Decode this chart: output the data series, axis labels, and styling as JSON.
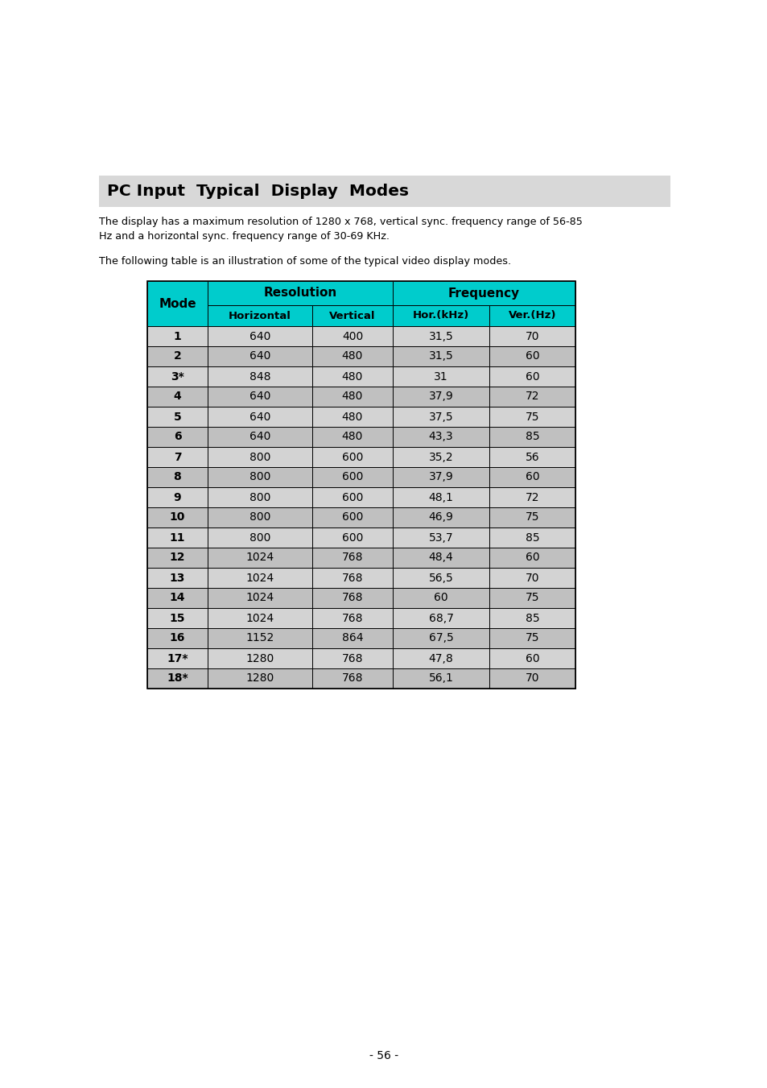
{
  "title": "PC Input  Typical  Display  Modes",
  "title_bg": "#d8d8d8",
  "description1": "The display has a maximum resolution of 1280 x 768, vertical sync. frequency range of 56-85\nHz and a horizontal sync. frequency range of 30-69 KHz.",
  "description2": "The following table is an illustration of some of the typical video display modes.",
  "page_number": "- 56 -",
  "header_bg": "#00cccc",
  "row_bg_light": "#d3d3d3",
  "row_bg_dark": "#c0c0c0",
  "rows": [
    [
      "1",
      "640",
      "400",
      "31,5",
      "70"
    ],
    [
      "2",
      "640",
      "480",
      "31,5",
      "60"
    ],
    [
      "3*",
      "848",
      "480",
      "31",
      "60"
    ],
    [
      "4",
      "640",
      "480",
      "37,9",
      "72"
    ],
    [
      "5",
      "640",
      "480",
      "37,5",
      "75"
    ],
    [
      "6",
      "640",
      "480",
      "43,3",
      "85"
    ],
    [
      "7",
      "800",
      "600",
      "35,2",
      "56"
    ],
    [
      "8",
      "800",
      "600",
      "37,9",
      "60"
    ],
    [
      "9",
      "800",
      "600",
      "48,1",
      "72"
    ],
    [
      "10",
      "800",
      "600",
      "46,9",
      "75"
    ],
    [
      "11",
      "800",
      "600",
      "53,7",
      "85"
    ],
    [
      "12",
      "1024",
      "768",
      "48,4",
      "60"
    ],
    [
      "13",
      "1024",
      "768",
      "56,5",
      "70"
    ],
    [
      "14",
      "1024",
      "768",
      "60",
      "75"
    ],
    [
      "15",
      "1024",
      "768",
      "68,7",
      "85"
    ],
    [
      "16",
      "1152",
      "864",
      "67,5",
      "75"
    ],
    [
      "17*",
      "1280",
      "768",
      "47,8",
      "60"
    ],
    [
      "18*",
      "1280",
      "768",
      "56,1",
      "70"
    ]
  ]
}
